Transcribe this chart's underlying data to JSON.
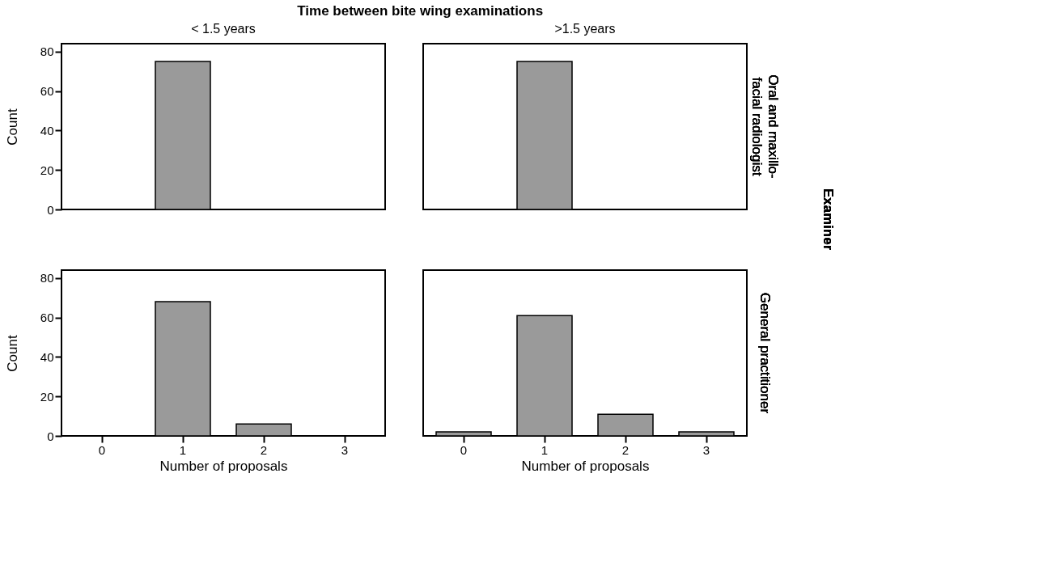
{
  "chart_data": [
    {
      "type": "bar",
      "title": "< 1.5 years",
      "ylabel": "Count",
      "categories": [
        "0",
        "1",
        "2",
        "3"
      ],
      "values": [
        null,
        75,
        null,
        null
      ],
      "color": "#9a9a9a",
      "ylim": [
        0,
        84
      ],
      "yticks": [
        0,
        20,
        40,
        60,
        80
      ],
      "tick_labels": "y",
      "grid": false,
      "annotations": [
        "Time between bite wing examinations",
        "Examiner"
      ]
    },
    {
      "type": "bar",
      "title": ">1.5 years",
      "y2label": "Oral and maxillo-\nfacial radiologist",
      "categories": [
        "0",
        "1",
        "2",
        "3"
      ],
      "values": [
        null,
        75,
        null,
        null
      ],
      "color": "#9a9a9a",
      "ylim": [
        0,
        84
      ],
      "yticks": [
        0,
        20,
        40,
        60,
        80
      ],
      "tick_labels": false,
      "grid": false
    },
    {
      "type": "bar",
      "xlabel": "Number of proposals",
      "ylabel": "Count",
      "categories": [
        "0",
        "1",
        "2",
        "3"
      ],
      "values": [
        null,
        68,
        6,
        null
      ],
      "color": "#9a9a9a",
      "ylim": [
        0,
        84
      ],
      "yticks": [
        0,
        20,
        40,
        60,
        80
      ],
      "grid": false
    },
    {
      "type": "bar",
      "xlabel": "Number of proposals",
      "y2label": "General practitioner",
      "categories": [
        "0",
        "1",
        "2",
        "3"
      ],
      "values": [
        2,
        61,
        11,
        2
      ],
      "color": "#9a9a9a",
      "ylim": [
        0,
        84
      ],
      "yticks": [
        0,
        20,
        40,
        60,
        80
      ],
      "tick_labels": "x",
      "grid": false
    }
  ]
}
